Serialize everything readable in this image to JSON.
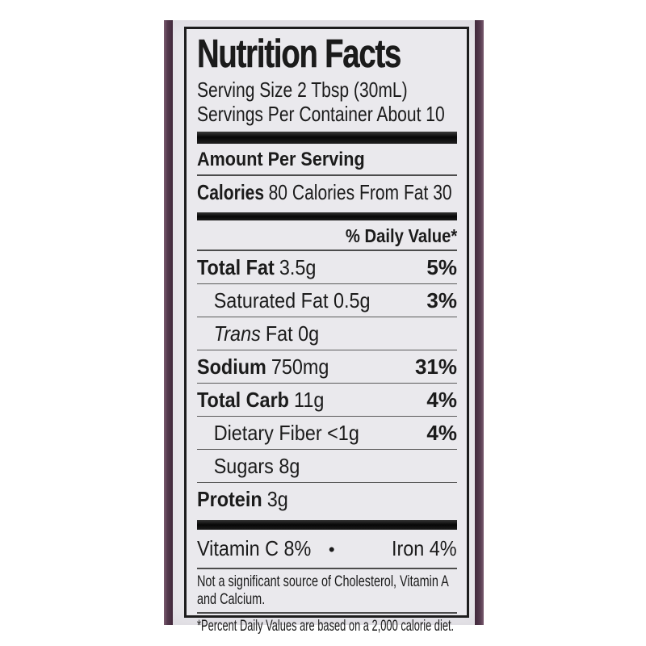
{
  "photo": {
    "bottle_edge_color": "#553a4e",
    "label_paper_color": "#eae9ed"
  },
  "label": {
    "title": "Nutrition Facts",
    "serving_size": "Serving Size 2 Tbsp (30mL)",
    "servings_per_container": "Servings Per Container About 10",
    "amount_per_serving": "Amount Per Serving",
    "calories": {
      "bold": "Calories",
      "rest": "80 Calories From Fat 30"
    },
    "daily_value_header": "% Daily Value*",
    "rows": [
      {
        "bold": "Total Fat",
        "rest": "3.5g",
        "pct": "5%"
      },
      {
        "plain": "Saturated Fat 0.5g",
        "pct": "3%"
      },
      {
        "italic": "Trans",
        "rest": "Fat 0g",
        "pct": ""
      },
      {
        "bold": "Sodium",
        "rest": "750mg",
        "pct": "31%"
      },
      {
        "bold": "Total Carb",
        "rest": "11g",
        "pct": "4%"
      },
      {
        "plain": "Dietary Fiber <1g",
        "pct": "4%"
      },
      {
        "plain": "Sugars 8g",
        "pct": ""
      },
      {
        "bold": "Protein",
        "rest": "3g",
        "pct": ""
      }
    ],
    "vitamins": {
      "left": "Vitamin C 8%",
      "separator": "•",
      "right": "Iron 4%"
    },
    "not_significant_line1": "Not a significant source of Cholesterol, Vitamin A",
    "not_significant_line2": "and Calcium.",
    "percent_footnote": "*Percent Daily Values are based on a 2,000 calorie diet."
  }
}
